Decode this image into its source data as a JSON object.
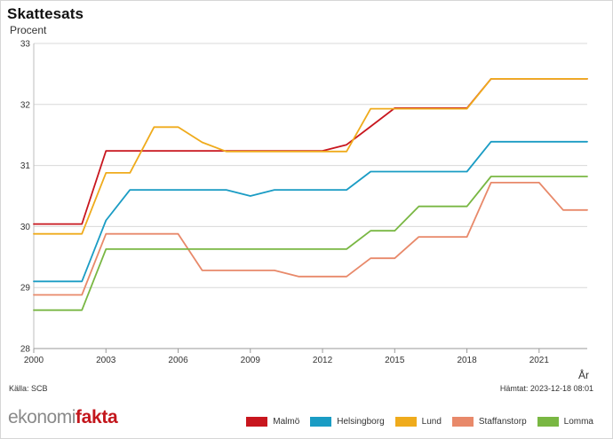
{
  "header": {
    "title": "Skattesats",
    "ylabel": "Procent",
    "xlabel": "År"
  },
  "footer": {
    "source": "Källa: SCB",
    "fetched": "Hämtat: 2023-12-18 08:01"
  },
  "logo": {
    "part_a": "ekonomi",
    "part_b": "fakta"
  },
  "chart_data": {
    "type": "line",
    "title": "Skattesats",
    "xlabel": "År",
    "ylabel": "Procent",
    "xlim": [
      2000,
      2023
    ],
    "ylim": [
      28,
      33
    ],
    "x_ticks": [
      2000,
      2003,
      2006,
      2009,
      2012,
      2015,
      2018,
      2021
    ],
    "y_ticks": [
      28,
      29,
      30,
      31,
      32,
      33
    ],
    "grid": true,
    "legend_position": "bottom-right",
    "x": [
      2000,
      2001,
      2002,
      2003,
      2004,
      2005,
      2006,
      2007,
      2008,
      2009,
      2010,
      2011,
      2012,
      2013,
      2014,
      2015,
      2016,
      2017,
      2018,
      2019,
      2020,
      2021,
      2022,
      2023
    ],
    "series": [
      {
        "name": "Malmö",
        "color": "#c8161e",
        "values": [
          30.04,
          30.04,
          30.04,
          31.24,
          31.24,
          31.24,
          31.24,
          31.24,
          31.24,
          31.24,
          31.24,
          31.24,
          31.24,
          31.34,
          31.64,
          31.94,
          31.94,
          31.94,
          31.94,
          32.42,
          32.42,
          32.42,
          32.42,
          32.42
        ]
      },
      {
        "name": "Helsingborg",
        "color": "#1a9cc4",
        "values": [
          29.1,
          29.1,
          29.1,
          30.1,
          30.6,
          30.6,
          30.6,
          30.6,
          30.6,
          30.5,
          30.6,
          30.6,
          30.6,
          30.6,
          30.9,
          30.9,
          30.9,
          30.9,
          30.9,
          31.39,
          31.39,
          31.39,
          31.39,
          31.39
        ]
      },
      {
        "name": "Lund",
        "color": "#efab1c",
        "values": [
          29.88,
          29.88,
          29.88,
          30.88,
          30.88,
          31.63,
          31.63,
          31.38,
          31.23,
          31.23,
          31.23,
          31.23,
          31.23,
          31.23,
          31.93,
          31.93,
          31.93,
          31.93,
          31.93,
          32.42,
          32.42,
          32.42,
          32.42,
          32.42
        ]
      },
      {
        "name": "Staffanstorp",
        "color": "#e8896a",
        "values": [
          28.88,
          28.88,
          28.88,
          29.88,
          29.88,
          29.88,
          29.88,
          29.28,
          29.28,
          29.28,
          29.28,
          29.18,
          29.18,
          29.18,
          29.48,
          29.48,
          29.83,
          29.83,
          29.83,
          30.72,
          30.72,
          30.72,
          30.27,
          30.27
        ]
      },
      {
        "name": "Lomma",
        "color": "#79b743",
        "values": [
          28.63,
          28.63,
          28.63,
          29.63,
          29.63,
          29.63,
          29.63,
          29.63,
          29.63,
          29.63,
          29.63,
          29.63,
          29.63,
          29.63,
          29.93,
          29.93,
          30.33,
          30.33,
          30.33,
          30.82,
          30.82,
          30.82,
          30.82,
          30.82
        ]
      }
    ]
  }
}
